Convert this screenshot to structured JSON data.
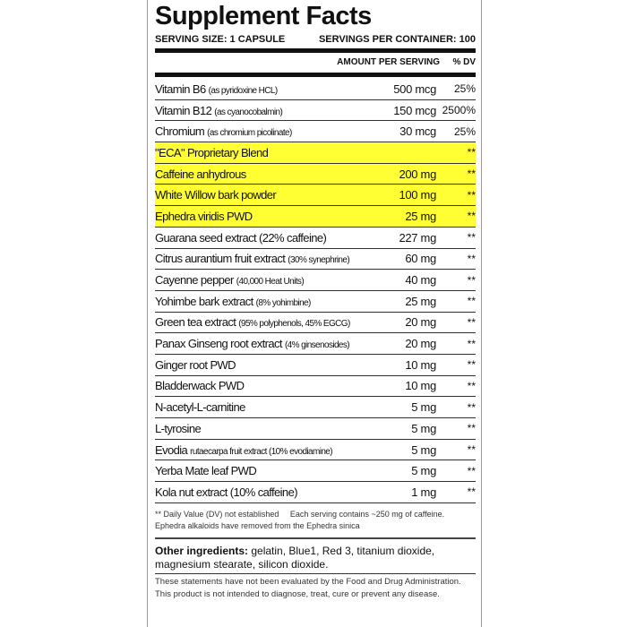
{
  "title": "Supplement Facts",
  "serving_size": "SERVING SIZE: 1 CAPSULE",
  "servings_per_container": "SERVINGS PER CONTAINER: 100",
  "col_amount": "AMOUNT PER SERVING",
  "col_dv": "% DV",
  "highlight_color": "#ffff33",
  "rows": [
    {
      "name": "Vitamin B6",
      "note": "(as pyridoxine HCL)",
      "amount": "500 mcg",
      "dv": "25%",
      "hl": false
    },
    {
      "name": "Vitamin B12",
      "note": "(as cyanocobalmin)",
      "amount": "150 mcg",
      "dv": "2500%",
      "hl": false
    },
    {
      "name": "Chromium",
      "note": "(as chromium picolinate)",
      "amount": "30 mcg",
      "dv": "25%",
      "hl": false
    },
    {
      "name": "\"ECA\" Proprietary Blend",
      "note": "",
      "amount": "",
      "dv": "**",
      "hl": true
    },
    {
      "name": "Caffeine anhydrous",
      "note": "",
      "amount": "200 mg",
      "dv": "**",
      "hl": true
    },
    {
      "name": "White Willow bark powder",
      "note": "",
      "amount": "100 mg",
      "dv": "**",
      "hl": true
    },
    {
      "name": "Ephedra viridis PWD",
      "note": "",
      "amount": "25 mg",
      "dv": "**",
      "hl": true
    },
    {
      "name": "Guarana seed extract (22% caffeine)",
      "note": "",
      "amount": "227 mg",
      "dv": "**",
      "hl": false
    },
    {
      "name": "Citrus aurantium fruit extract",
      "note": "(30% synephrine)",
      "amount": "60 mg",
      "dv": "**",
      "hl": false
    },
    {
      "name": "Cayenne pepper",
      "note": "(40,000 Heat Units)",
      "amount": "40 mg",
      "dv": "**",
      "hl": false
    },
    {
      "name": "Yohimbe bark extract",
      "note": "(8% yohimbine)",
      "amount": "25 mg",
      "dv": "**",
      "hl": false
    },
    {
      "name": "Green tea extract",
      "note": "(95% polyphenols, 45% EGCG)",
      "amount": "20 mg",
      "dv": "**",
      "hl": false
    },
    {
      "name": "Panax Ginseng root extract",
      "note": "(4% ginsenosides)",
      "amount": "20 mg",
      "dv": "**",
      "hl": false
    },
    {
      "name": "Ginger root PWD",
      "note": "",
      "amount": "10 mg",
      "dv": "**",
      "hl": false
    },
    {
      "name": "Bladderwack PWD",
      "note": "",
      "amount": "10 mg",
      "dv": "**",
      "hl": false
    },
    {
      "name": "N-acetyl-L-carnitine",
      "note": "",
      "amount": "5 mg",
      "dv": "**",
      "hl": false
    },
    {
      "name": "L-tyrosine",
      "note": "",
      "amount": "5 mg",
      "dv": "**",
      "hl": false
    },
    {
      "name": "Evodia",
      "note": "rutaecarpa fruit extract (10% evodiamine)",
      "amount": "5 mg",
      "dv": "**",
      "hl": false
    },
    {
      "name": "Yerba Mate leaf PWD",
      "note": "",
      "amount": "5 mg",
      "dv": "**",
      "hl": false
    },
    {
      "name": "Kola nut extract (10% caffeine)",
      "note": "",
      "amount": "1 mg",
      "dv": "**",
      "hl": false
    }
  ],
  "footnote1": "** Daily Value (DV) not established",
  "footnote2": "Each serving contains ~250 mg of caffeine.",
  "footnote3": "Ephedra alkaloids have removed from the Ephedra sinica",
  "other_label": "Other ingredients:",
  "other_text": " gelatin, Blue1, Red 3, titanium dioxide, magnesium stearate, silicon dioxide.",
  "disclaimer1": "These statements have not been evaluated by the Food and Drug Administration.",
  "disclaimer2": "This product is not intended to diagnose, treat, cure or prevent any disease."
}
